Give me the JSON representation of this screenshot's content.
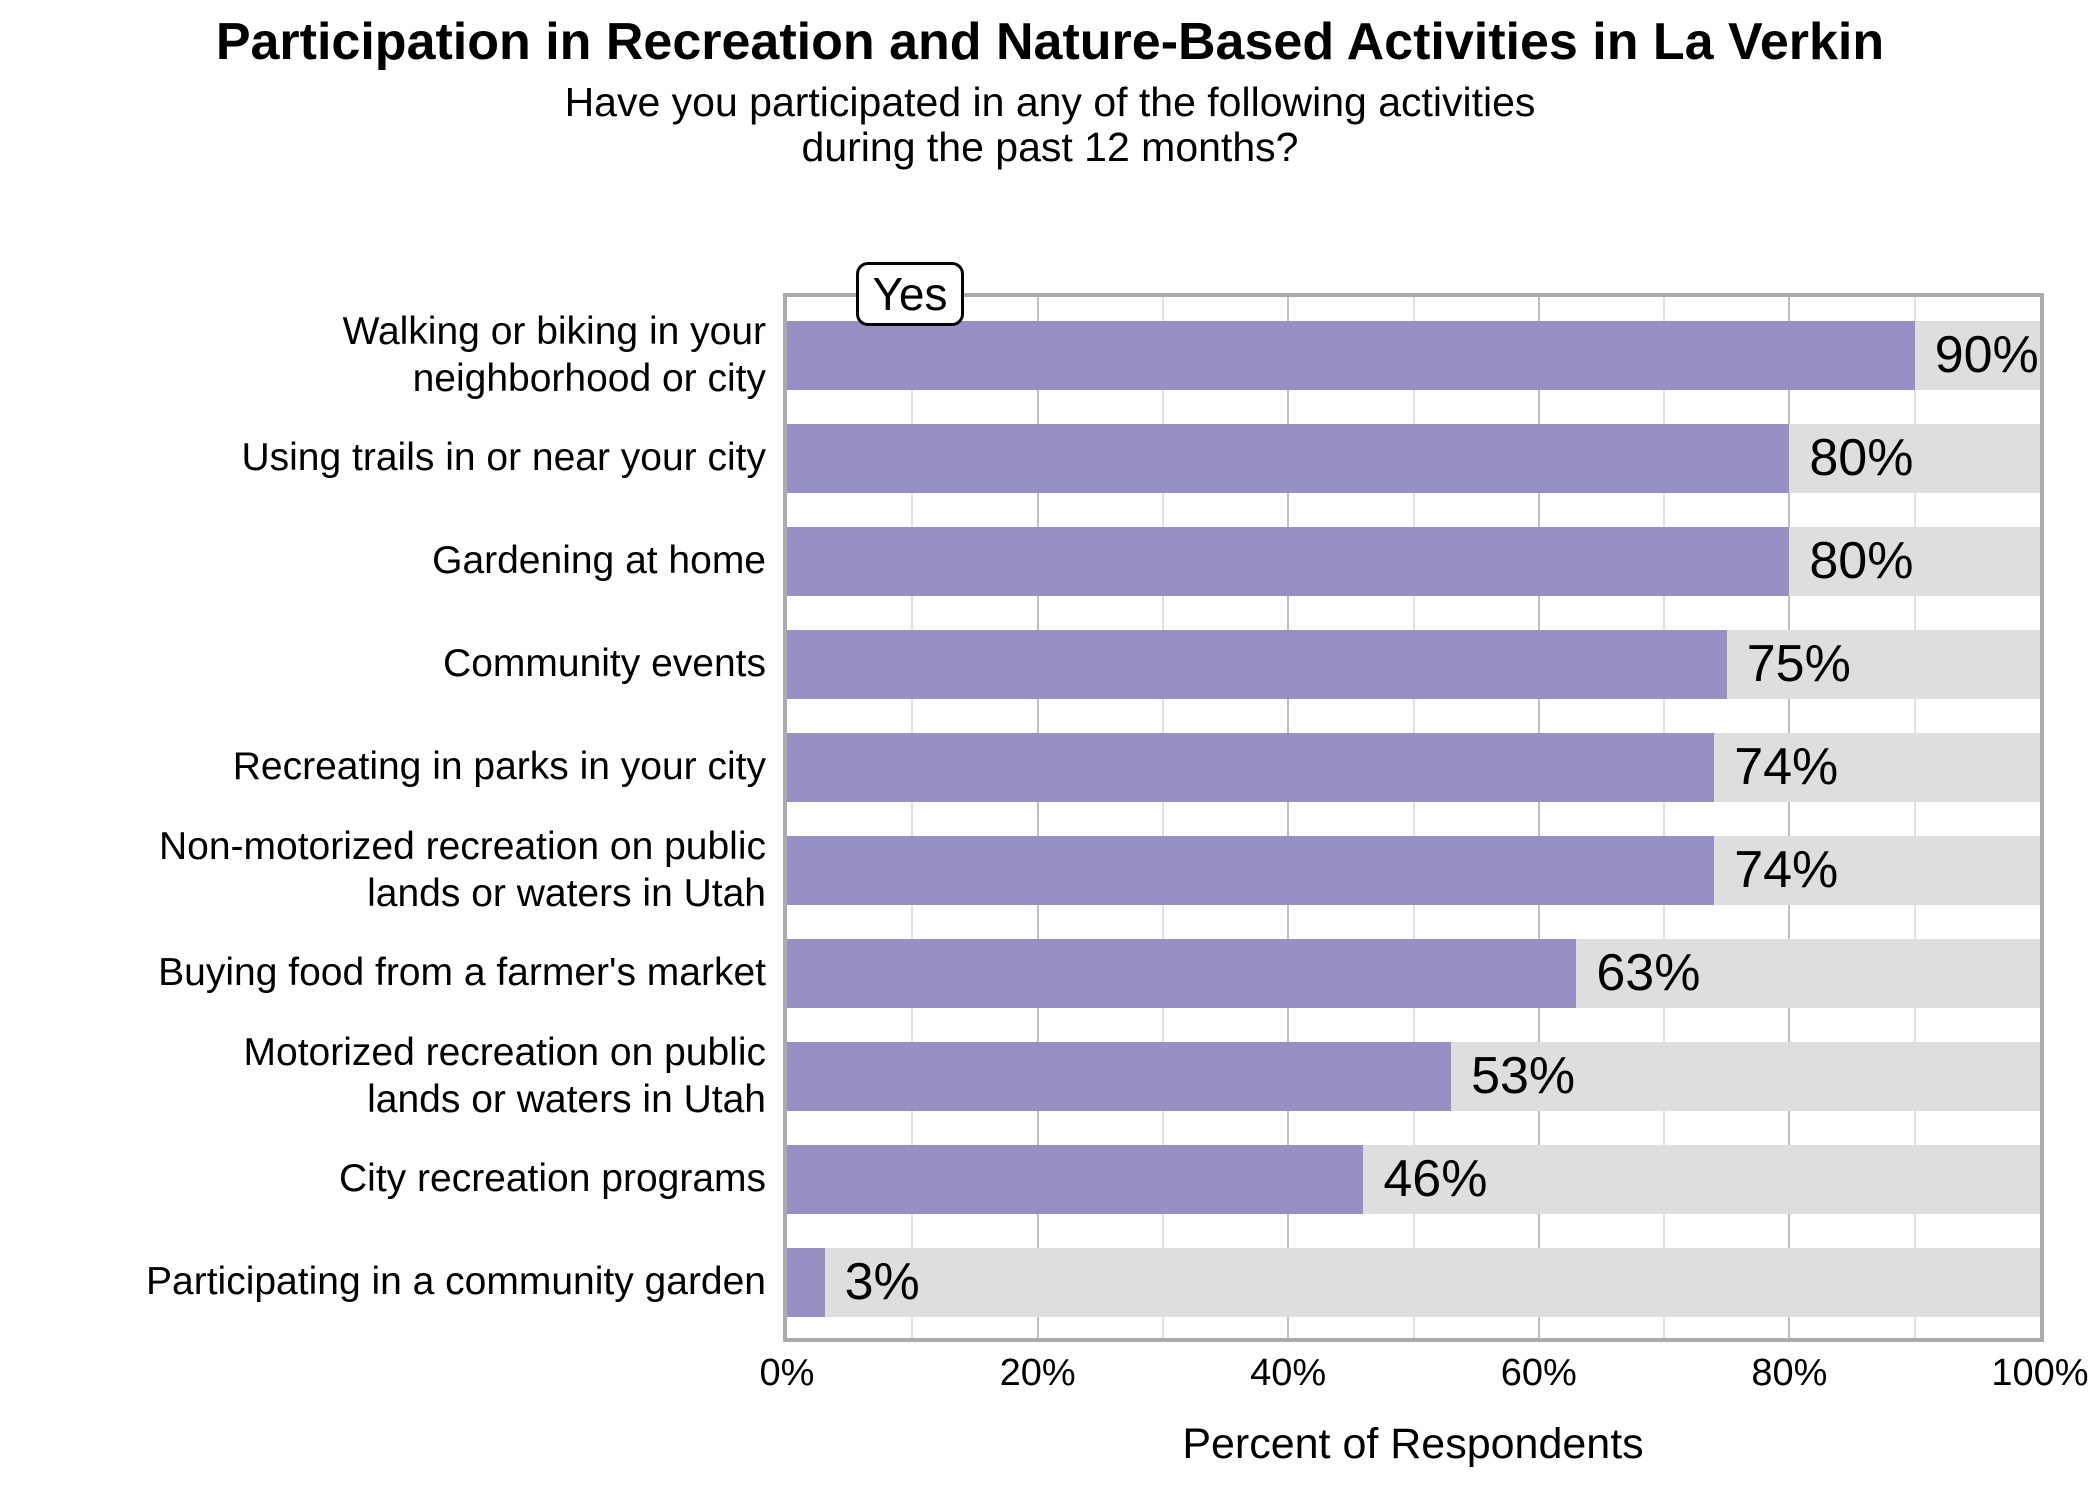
{
  "title": "Participation in Recreation and Nature-Based Activities in La Verkin",
  "subtitle": "Have you participated in any of the following activities\nduring the past 12 months?",
  "legend": {
    "label": "Yes"
  },
  "chart_data": {
    "type": "bar",
    "orientation": "horizontal",
    "title": "Participation in Recreation and Nature-Based Activities in La Verkin",
    "subtitle": "Have you participated in any of the following activities during the past 12 months?",
    "categories": [
      "Walking or biking in your\nneighborhood or city",
      "Using trails in or near your city",
      "Gardening at home",
      "Community events",
      "Recreating in parks in your city",
      "Non-motorized recreation on public\nlands or waters in Utah",
      "Buying food from a farmer's market",
      "Motorized recreation on public\nlands or waters in Utah",
      "City recreation programs",
      "Participating in a community garden"
    ],
    "values": [
      90,
      80,
      80,
      75,
      74,
      74,
      63,
      53,
      46,
      3
    ],
    "value_labels": [
      "90%",
      "80%",
      "80%",
      "75%",
      "74%",
      "74%",
      "63%",
      "53%",
      "46%",
      "3%"
    ],
    "series_label": "Yes",
    "xlabel": "Percent of Respondents",
    "ylabel": "",
    "xlim": [
      0,
      100
    ],
    "x_tick_values": [
      0,
      20,
      40,
      60,
      80,
      100
    ],
    "x_tick_labels": [
      "0%",
      "20%",
      "40%",
      "60%",
      "80%",
      "100%"
    ],
    "major_gridlines": [
      20,
      40,
      60,
      80
    ],
    "minor_gridlines": [
      10,
      30,
      50,
      70,
      90
    ],
    "grid": "on",
    "legend_position": "top-left-inside",
    "colors": {
      "bar": "#9790c5",
      "track": "#dedede",
      "grid_major": "#bfbfbf",
      "grid_minor": "#e0e0e0",
      "panel_border": "#ababab",
      "text": "#000000"
    }
  }
}
